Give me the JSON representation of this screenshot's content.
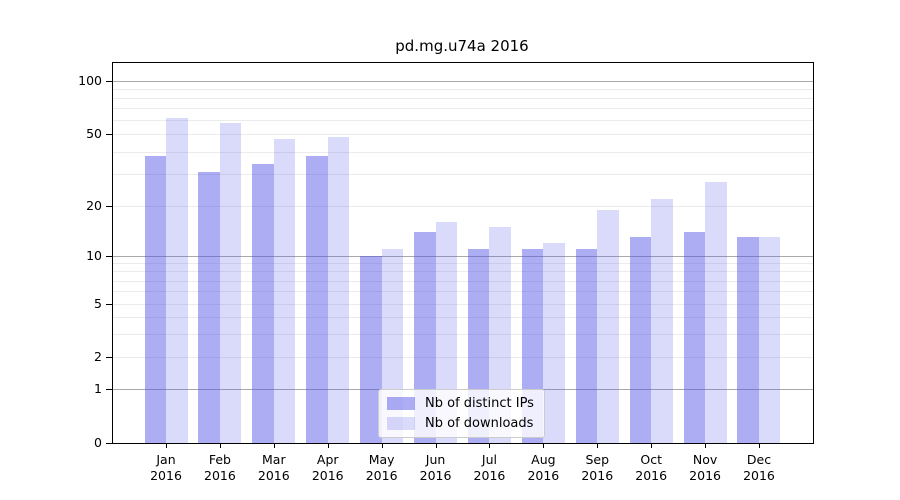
{
  "chart_data": {
    "type": "bar",
    "title": "pd.mg.u74a 2016",
    "categories": [
      "Jan 2016",
      "Feb 2016",
      "Mar 2016",
      "Apr 2016",
      "May 2016",
      "Jun 2016",
      "Jul 2016",
      "Aug 2016",
      "Sep 2016",
      "Oct 2016",
      "Nov 2016",
      "Dec 2016"
    ],
    "series": [
      {
        "name": "Nb of distinct IPs",
        "values": [
          38,
          31,
          34,
          38,
          10,
          14,
          11,
          11,
          11,
          13,
          14,
          13
        ],
        "color": "#5050e878"
      },
      {
        "name": "Nb of downloads",
        "values": [
          62,
          58,
          47,
          48,
          11,
          16,
          15,
          12,
          19,
          22,
          27,
          13
        ],
        "color": "#5050e836"
      }
    ],
    "y_axis": {
      "scale": "symlog",
      "ticks": [
        100,
        50,
        20,
        10,
        5,
        2,
        1,
        0
      ],
      "range": [
        0,
        127
      ]
    },
    "x_axis": {
      "tick_label_format": "month newline year"
    },
    "legend": {
      "position": "lower center inside plot"
    },
    "grid": "major and log-minor horizontal lines",
    "colors": {
      "major_grid": "#a9a9a9",
      "minor_grid": "#ebebeb",
      "spine": "#000000",
      "background": "#ffffff"
    }
  }
}
